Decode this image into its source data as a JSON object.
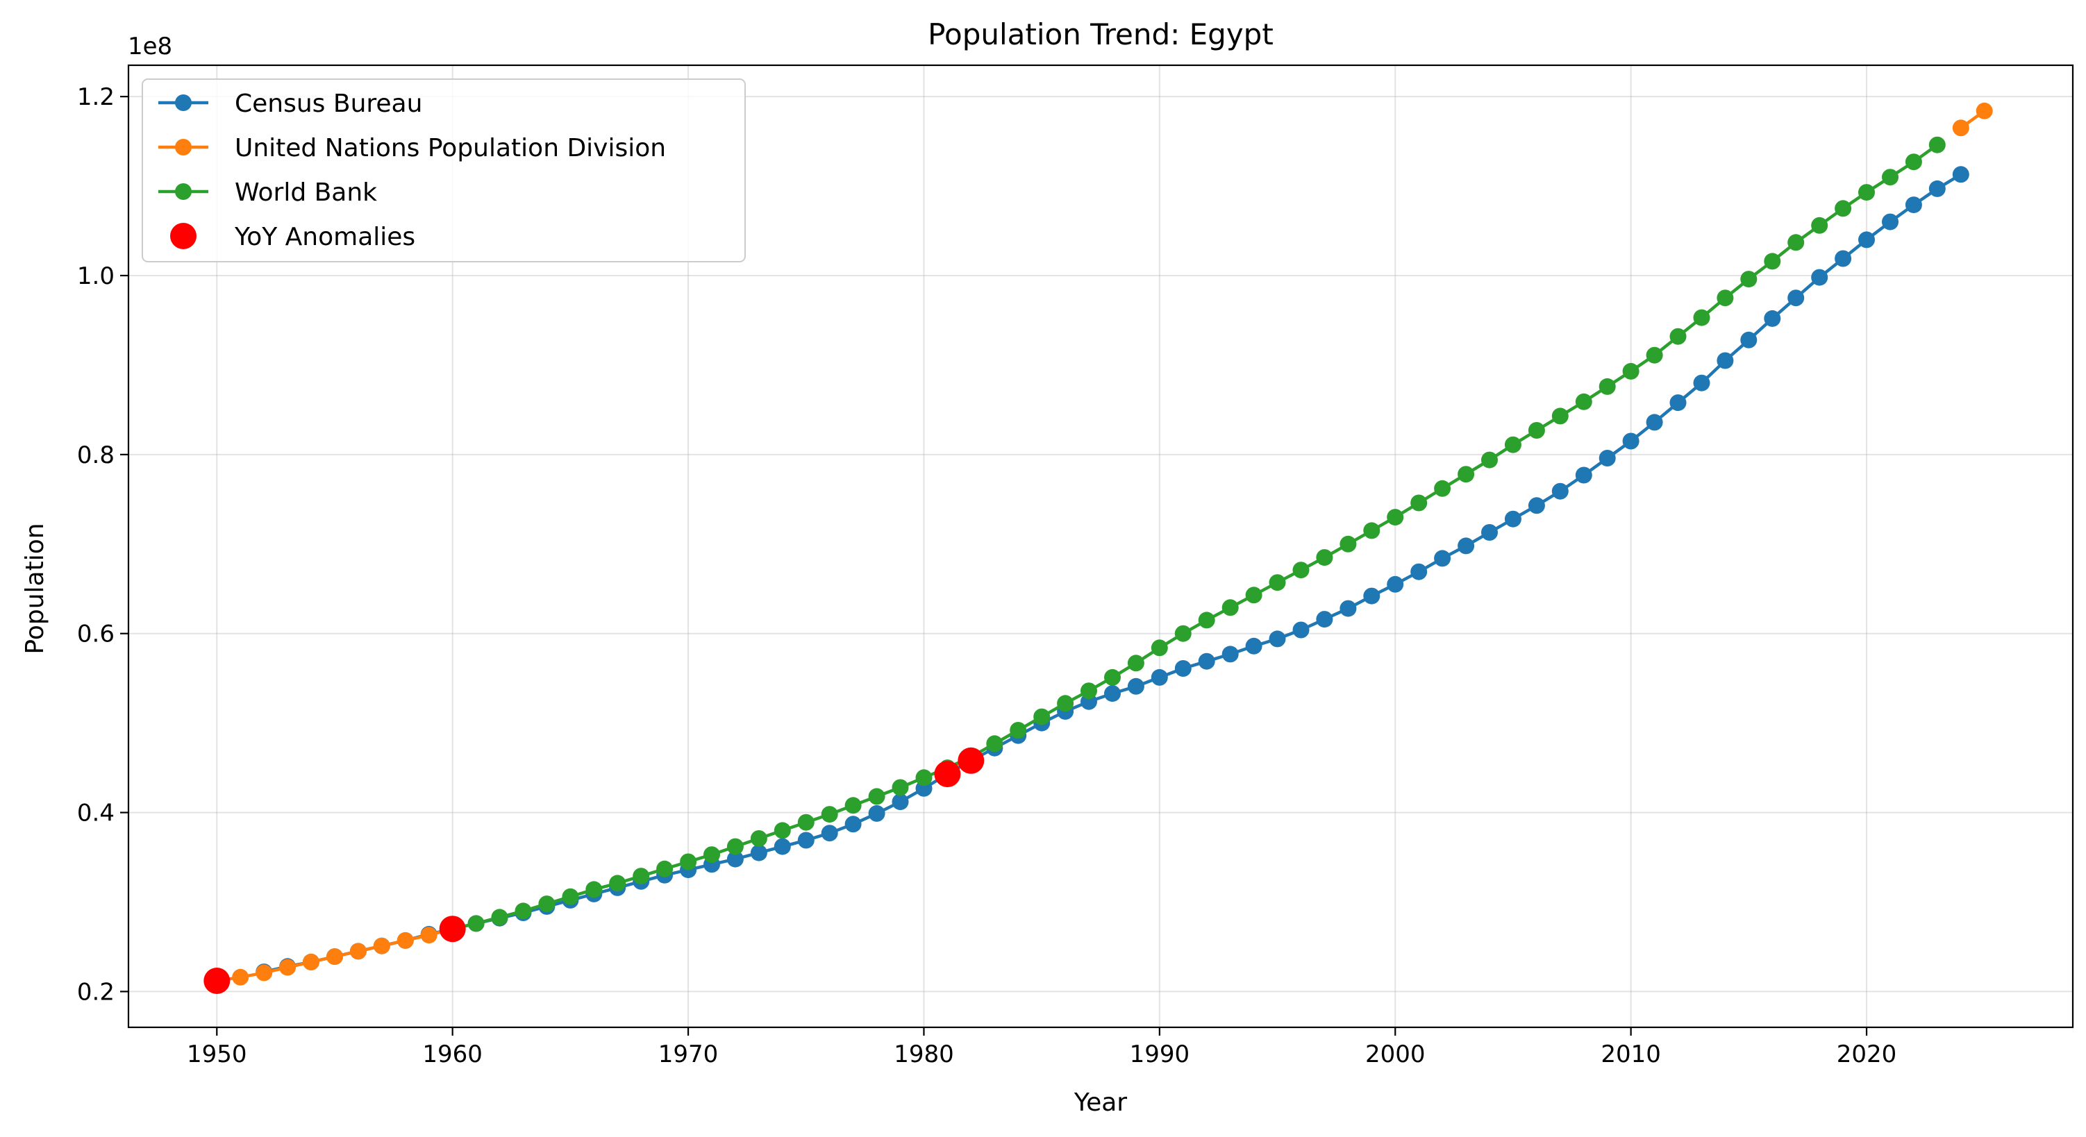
{
  "chart_data": {
    "type": "line",
    "title": "Population Trend: Egypt",
    "xlabel": "Year",
    "ylabel": "Population",
    "y_offset_label": "1e8",
    "xlim": [
      1946.25,
      2028.75
    ],
    "ylim": [
      0.16,
      1.235
    ],
    "y_unit_multiplier": 100000000,
    "x_ticks": [
      1950,
      1960,
      1970,
      1980,
      1990,
      2000,
      2010,
      2020
    ],
    "y_ticks": [
      0.2,
      0.4,
      0.6,
      0.8,
      1.0,
      1.2
    ],
    "y_tick_labels": [
      "0.2",
      "0.4",
      "0.6",
      "0.8",
      "1.0",
      "1.2"
    ],
    "grid": true,
    "legend_position": "top-left",
    "series": [
      {
        "name": "Census Bureau",
        "color": "#1f77b4",
        "x": [
          1952,
          1953,
          1954,
          1955,
          1956,
          1957,
          1958,
          1959,
          1960,
          1961,
          1962,
          1963,
          1964,
          1965,
          1966,
          1967,
          1968,
          1969,
          1970,
          1971,
          1972,
          1973,
          1974,
          1975,
          1976,
          1977,
          1978,
          1979,
          1980,
          1981,
          1982,
          1983,
          1984,
          1985,
          1986,
          1987,
          1988,
          1989,
          1990,
          1991,
          1992,
          1993,
          1994,
          1995,
          1996,
          1997,
          1998,
          1999,
          2000,
          2001,
          2002,
          2003,
          2004,
          2005,
          2006,
          2007,
          2008,
          2009,
          2010,
          2011,
          2012,
          2013,
          2014,
          2015,
          2016,
          2017,
          2018,
          2019,
          2020,
          2021,
          2022,
          2023,
          2024
        ],
        "y": [
          0.222,
          0.228,
          0.233,
          0.239,
          0.245,
          0.251,
          0.257,
          0.264,
          0.27,
          0.276,
          0.282,
          0.288,
          0.295,
          0.302,
          0.309,
          0.316,
          0.323,
          0.33,
          0.336,
          0.342,
          0.348,
          0.355,
          0.362,
          0.369,
          0.377,
          0.387,
          0.399,
          0.412,
          0.427,
          0.443,
          0.458,
          0.472,
          0.486,
          0.5,
          0.513,
          0.524,
          0.533,
          0.541,
          0.551,
          0.561,
          0.569,
          0.577,
          0.586,
          0.594,
          0.604,
          0.616,
          0.628,
          0.642,
          0.655,
          0.669,
          0.684,
          0.698,
          0.713,
          0.728,
          0.743,
          0.759,
          0.777,
          0.796,
          0.815,
          0.836,
          0.858,
          0.88,
          0.905,
          0.928,
          0.952,
          0.975,
          0.998,
          1.019,
          1.04,
          1.06,
          1.079,
          1.097,
          1.113
        ]
      },
      {
        "name": "United Nations Population Division",
        "color": "#ff7f0e",
        "x": [
          1950,
          1951,
          1952,
          1953,
          1954,
          1955,
          1956,
          1957,
          1958,
          1959,
          1960,
          1981,
          1982,
          2024,
          2025
        ],
        "y": [
          0.212,
          0.216,
          0.221,
          0.227,
          0.233,
          0.239,
          0.245,
          0.251,
          0.257,
          0.263,
          0.27,
          0.448,
          0.46,
          1.165,
          1.184
        ]
      },
      {
        "name": "World Bank",
        "color": "#2ca02c",
        "x": [
          1960,
          1961,
          1962,
          1963,
          1964,
          1965,
          1966,
          1967,
          1968,
          1969,
          1970,
          1971,
          1972,
          1973,
          1974,
          1975,
          1976,
          1977,
          1978,
          1979,
          1980,
          1981,
          1982,
          1983,
          1984,
          1985,
          1986,
          1987,
          1988,
          1989,
          1990,
          1991,
          1992,
          1993,
          1994,
          1995,
          1996,
          1997,
          1998,
          1999,
          2000,
          2001,
          2002,
          2003,
          2004,
          2005,
          2006,
          2007,
          2008,
          2009,
          2010,
          2011,
          2012,
          2013,
          2014,
          2015,
          2016,
          2017,
          2018,
          2019,
          2020,
          2021,
          2022,
          2023
        ],
        "y": [
          0.27,
          0.276,
          0.283,
          0.29,
          0.298,
          0.306,
          0.314,
          0.321,
          0.329,
          0.337,
          0.345,
          0.353,
          0.362,
          0.371,
          0.38,
          0.389,
          0.398,
          0.408,
          0.418,
          0.428,
          0.439,
          0.45,
          0.462,
          0.477,
          0.492,
          0.507,
          0.522,
          0.536,
          0.551,
          0.567,
          0.584,
          0.6,
          0.615,
          0.629,
          0.643,
          0.657,
          0.671,
          0.685,
          0.7,
          0.715,
          0.73,
          0.746,
          0.762,
          0.778,
          0.794,
          0.811,
          0.827,
          0.843,
          0.859,
          0.876,
          0.893,
          0.911,
          0.932,
          0.953,
          0.975,
          0.996,
          1.016,
          1.037,
          1.056,
          1.075,
          1.093,
          1.11,
          1.127,
          1.146
        ]
      },
      {
        "name": "YoY Anomalies",
        "color": "#ff0000",
        "kind": "scatter",
        "x": [
          1950,
          1960,
          1981,
          1982
        ],
        "y": [
          0.212,
          0.27,
          0.443,
          0.458
        ]
      }
    ]
  }
}
